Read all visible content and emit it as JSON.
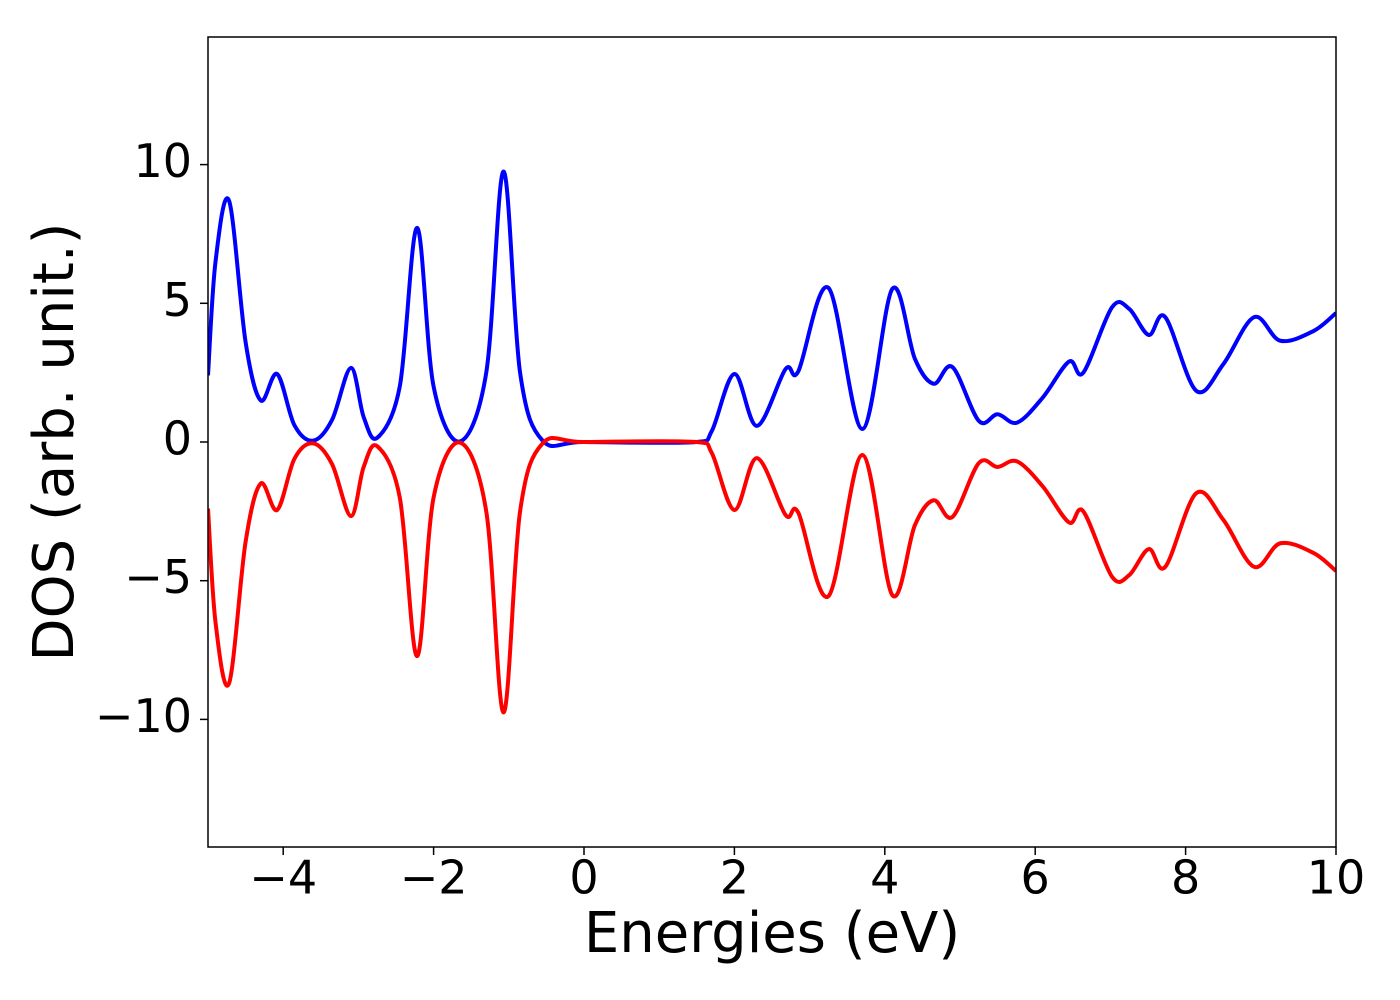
{
  "chart_data": {
    "type": "line",
    "xlabel": "Energies (eV)",
    "ylabel": "DOS (arb. unit.)",
    "x": [
      -5,
      -4.9,
      -4.72,
      -4.5,
      -4.3,
      -4.08,
      -3.85,
      -3.6,
      -3.35,
      -3.1,
      -2.93,
      -2.75,
      -2.45,
      -2.22,
      -2.0,
      -1.65,
      -1.3,
      -1.07,
      -0.85,
      -0.55,
      0,
      1.5,
      1.7,
      2.0,
      2.3,
      2.68,
      2.85,
      3.25,
      3.7,
      4.1,
      4.4,
      4.65,
      4.9,
      5.25,
      5.5,
      5.76,
      6.1,
      6.45,
      6.64,
      7.02,
      7.25,
      7.51,
      7.73,
      8.14,
      8.5,
      8.91,
      9.26,
      9.7,
      10
    ],
    "series": [
      {
        "color": "#0000ff",
        "values": [
          2.4,
          6.5,
          8.7,
          3.6,
          1.5,
          2.45,
          0.6,
          0.05,
          0.8,
          2.67,
          0.9,
          0.15,
          2.0,
          7.72,
          2.0,
          0.02,
          2.5,
          9.75,
          2.5,
          0.05,
          0,
          0,
          0.4,
          2.45,
          0.58,
          2.63,
          2.55,
          5.56,
          0.47,
          5.52,
          3.0,
          2.1,
          2.7,
          0.76,
          1.0,
          0.7,
          1.6,
          2.9,
          2.5,
          4.85,
          4.8,
          3.86,
          4.5,
          1.85,
          2.8,
          4.5,
          3.65,
          4.0,
          4.65
        ]
      },
      {
        "color": "#ff0000",
        "values": [
          -2.4,
          -6.5,
          -8.7,
          -3.6,
          -1.5,
          -2.45,
          -0.6,
          -0.05,
          -0.8,
          -2.67,
          -0.9,
          -0.15,
          -2.0,
          -7.72,
          -2.0,
          -0.02,
          -2.5,
          -9.75,
          -2.5,
          -0.05,
          0,
          0,
          -0.4,
          -2.45,
          -0.58,
          -2.63,
          -2.55,
          -5.56,
          -0.47,
          -5.52,
          -3.0,
          -2.1,
          -2.7,
          -0.76,
          -0.9,
          -0.7,
          -1.6,
          -2.9,
          -2.5,
          -4.85,
          -4.8,
          -3.86,
          -4.5,
          -1.85,
          -2.8,
          -4.5,
          -3.65,
          -4.0,
          -4.65
        ]
      }
    ],
    "xlim": [
      -5,
      10
    ],
    "xticks": [
      {
        "value": -4,
        "label": "−4"
      },
      {
        "value": -2,
        "label": "−2"
      },
      0,
      2,
      4,
      6,
      8,
      10
    ],
    "ylim": [
      -14.6,
      14.6
    ],
    "yticks": [
      {
        "value": -10,
        "label": "−10"
      },
      {
        "value": -5,
        "label": "−5"
      },
      0,
      5,
      10
    ],
    "grid": false
  }
}
